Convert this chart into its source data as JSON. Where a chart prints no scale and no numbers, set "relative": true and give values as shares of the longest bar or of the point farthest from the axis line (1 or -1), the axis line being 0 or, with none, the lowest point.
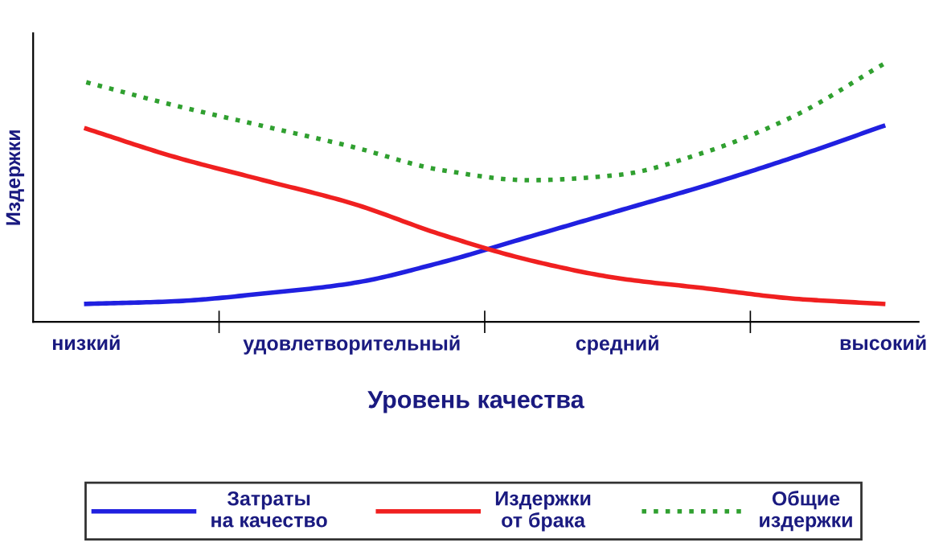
{
  "chart_data": {
    "type": "line",
    "relative": true,
    "xlabel": "Уровень качества",
    "ylabel": "Издержки",
    "categories": [
      "низкий",
      null,
      null,
      "удовлетворительный",
      null,
      null,
      "средний",
      null,
      null,
      "высокий"
    ],
    "series": [
      {
        "name": "Затраты\nна качество",
        "color": "#2020e0",
        "values": [
          0.07,
          0.08,
          0.11,
          0.15,
          0.23,
          0.33,
          0.43,
          0.53,
          0.64,
          0.76
        ]
      },
      {
        "name": "Издержки\nот брака",
        "color": "#f02020",
        "values": [
          0.75,
          0.64,
          0.55,
          0.46,
          0.34,
          0.24,
          0.17,
          0.13,
          0.09,
          0.07
        ]
      },
      {
        "name": "Общие\nиздержки",
        "color": "#30a030",
        "line_style": "dotted",
        "values": [
          0.93,
          0.84,
          0.76,
          0.68,
          0.59,
          0.55,
          0.57,
          0.66,
          0.8,
          1.0
        ]
      }
    ],
    "legend": "bottom",
    "grid": false,
    "marker": "none"
  }
}
